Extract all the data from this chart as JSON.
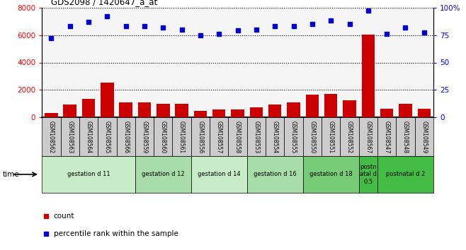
{
  "title": "GDS2098 / 1420647_a_at",
  "samples": [
    "GSM108562",
    "GSM108563",
    "GSM108564",
    "GSM108565",
    "GSM108566",
    "GSM108559",
    "GSM108560",
    "GSM108561",
    "GSM108556",
    "GSM108557",
    "GSM108558",
    "GSM108553",
    "GSM108554",
    "GSM108555",
    "GSM108550",
    "GSM108551",
    "GSM108552",
    "GSM108567",
    "GSM108547",
    "GSM108548",
    "GSM108549"
  ],
  "counts": [
    350,
    950,
    1350,
    2550,
    1100,
    1100,
    1000,
    1000,
    500,
    600,
    600,
    750,
    950,
    1100,
    1650,
    1700,
    1250,
    6050,
    650,
    1000,
    650
  ],
  "percentiles": [
    72,
    83,
    87,
    92,
    83,
    83,
    82,
    80,
    75,
    76,
    79,
    80,
    83,
    83,
    85,
    88,
    85,
    97,
    76,
    82,
    77
  ],
  "groups": [
    {
      "label": "gestation d 11",
      "start": 0,
      "end": 4,
      "color": "#c8ecc8"
    },
    {
      "label": "gestation d 12",
      "start": 5,
      "end": 7,
      "color": "#a8dca8"
    },
    {
      "label": "gestation d 14",
      "start": 8,
      "end": 10,
      "color": "#c8ecc8"
    },
    {
      "label": "gestation d 16",
      "start": 11,
      "end": 13,
      "color": "#a8dca8"
    },
    {
      "label": "gestation d 18",
      "start": 14,
      "end": 16,
      "color": "#78cc78"
    },
    {
      "label": "postn\natal d\n0.5",
      "start": 17,
      "end": 17,
      "color": "#44bb44"
    },
    {
      "label": "postnatal d 2",
      "start": 18,
      "end": 20,
      "color": "#44bb44"
    }
  ],
  "bar_color": "#cc0000",
  "dot_color": "#0000cc",
  "ylim_left": [
    0,
    8000
  ],
  "ylim_right": [
    0,
    100
  ],
  "yticks_left": [
    0,
    2000,
    4000,
    6000,
    8000
  ],
  "yticks_right": [
    0,
    25,
    50,
    75,
    100
  ],
  "ytick_right_labels": [
    "0",
    "25",
    "50",
    "75",
    "100%"
  ],
  "sample_box_color": "#cccccc",
  "plot_bg_color": "#f5f5f5",
  "time_label": "time"
}
